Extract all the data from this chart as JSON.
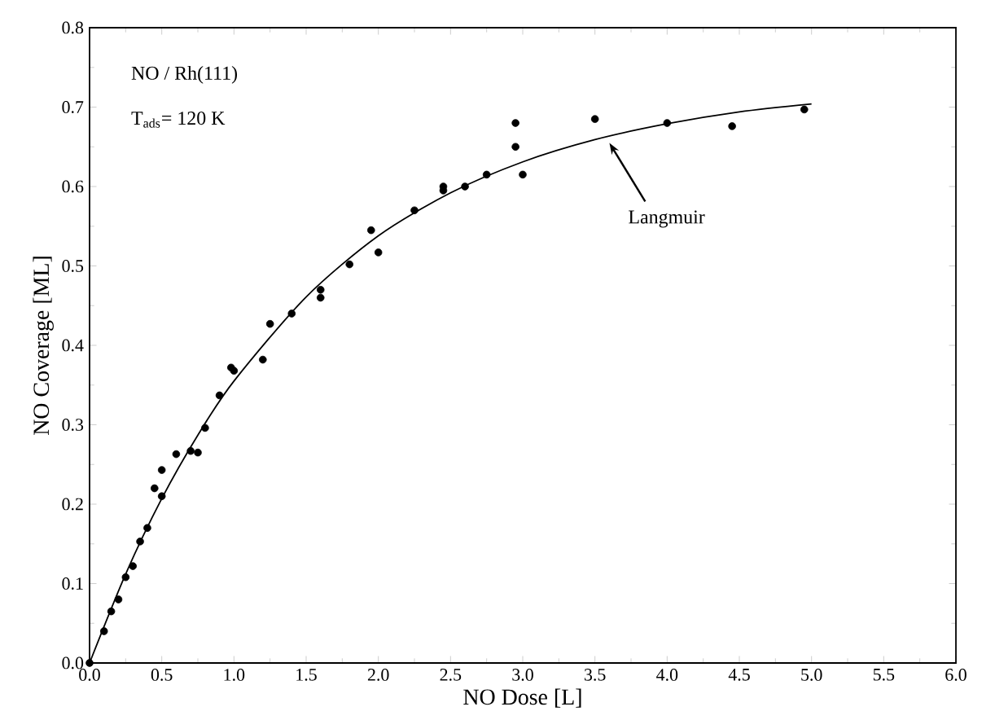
{
  "chart_data": {
    "type": "scatter",
    "xlabel": "NO  Dose  [L]",
    "ylabel": "NO Coverage  [ML]",
    "annotations": [
      "NO / Rh(111)",
      "T$_{ads}$= 120 K",
      {
        "text": "Langmuir",
        "x": 3.6,
        "y": 0.655
      }
    ],
    "series": [
      {
        "type": "scatter",
        "color": "#000000",
        "marker": "circle",
        "x": [
          0,
          0.1,
          0.15,
          0.2,
          0.25,
          0.3,
          0.35,
          0.4,
          0.45,
          0.5,
          0.5,
          0.6,
          0.7,
          0.75,
          0.8,
          0.9,
          0.98,
          1.0,
          1.2,
          1.25,
          1.4,
          1.6,
          1.6,
          1.8,
          1.95,
          2.0,
          2.25,
          2.45,
          2.45,
          2.6,
          2.75,
          2.95,
          2.95,
          3.0,
          3.5,
          4.0,
          4.45,
          4.95
        ],
        "values": [
          0,
          0.04,
          0.065,
          0.08,
          0.108,
          0.122,
          0.153,
          0.17,
          0.22,
          0.243,
          0.21,
          0.263,
          0.267,
          0.265,
          0.296,
          0.337,
          0.372,
          0.368,
          0.382,
          0.427,
          0.44,
          0.47,
          0.46,
          0.502,
          0.545,
          0.517,
          0.57,
          0.595,
          0.6,
          0.6,
          0.615,
          0.68,
          0.65,
          0.615,
          0.685,
          0.68,
          0.676,
          0.697
        ]
      },
      {
        "type": "line",
        "color": "#000000",
        "marker": "none",
        "line_style": "solid",
        "x": [
          0,
          0.25,
          0.5,
          0.75,
          1,
          1.5,
          2,
          2.5,
          3,
          3.5,
          4,
          4.5,
          5
        ],
        "values": [
          0,
          0.112,
          0.207,
          0.287,
          0.355,
          0.461,
          0.538,
          0.592,
          0.631,
          0.659,
          0.679,
          0.694,
          0.704
        ]
      }
    ],
    "xlim": [
      0,
      6
    ],
    "ylim": [
      0,
      0.8
    ],
    "xticks": [
      {
        "value": 0,
        "label": "0.0"
      },
      0.5,
      {
        "value": 1,
        "label": "1.0"
      },
      1.5,
      {
        "value": 2,
        "label": "2.0"
      },
      2.5,
      {
        "value": 3,
        "label": "3.0"
      },
      3.5,
      {
        "value": 4,
        "label": "4.0"
      },
      4.5,
      {
        "value": 5,
        "label": "5.0"
      },
      5.5,
      {
        "value": 6,
        "label": "6.0"
      }
    ],
    "yticks": [
      {
        "value": 0,
        "label": "0.0"
      },
      0.1,
      0.2,
      0.3,
      0.4,
      0.5,
      0.6,
      0.7,
      0.8
    ],
    "grid": false,
    "legend": false
  }
}
